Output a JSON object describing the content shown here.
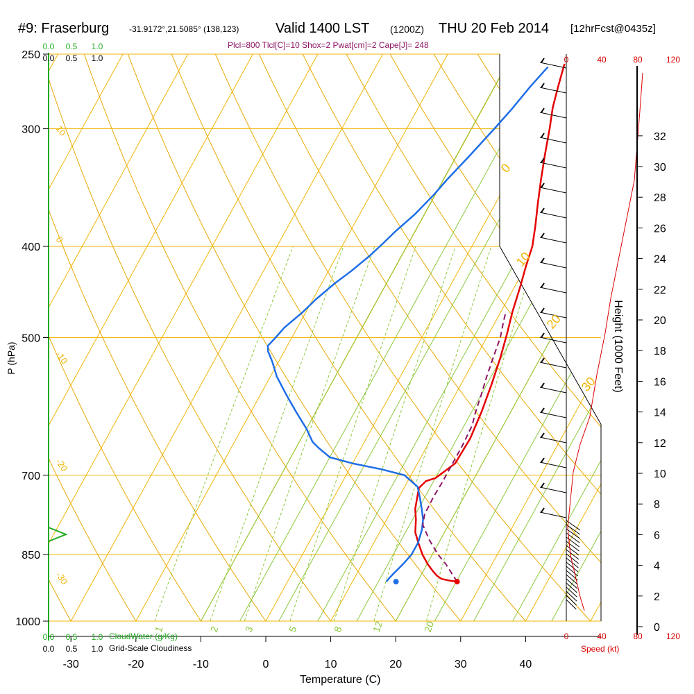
{
  "header": {
    "site": "#9: Fraserburg",
    "coords": "-31.9172°,21.5085° (138,123)",
    "valid_label": "Valid 1400 LST",
    "zulu": "(1200Z)",
    "date": "THU 20 Feb 2014",
    "forecast": "[12hrFcst@0435z]",
    "indices": "Plcl=800 Tlcl[C]=10 Shox=2 Pwat[cm]=2 Cape[J]= 248"
  },
  "colors": {
    "isobar": "#f0b400",
    "dry_adiabat": "#e8a800",
    "moist_adiabat": "#8cc83c",
    "mixing_ratio": "#8cc83c",
    "temperature": "#e60000",
    "dewpoint": "#1e6ee6",
    "parcel": "#8c1464",
    "cloud": "#22aa22",
    "speed": "#dd0000"
  },
  "chart_data": {
    "type": "line",
    "title": "Valid 1400 LST (1200Z) THU 20 Feb 2014",
    "xlabel": "Temperature (C)",
    "ylabel": "P (hPa)",
    "y2label": "Height (1000 Feet)",
    "pressure_ticks": [
      "250",
      "300",
      "400",
      "500",
      "700",
      "850",
      "1000"
    ],
    "temperature_ticks": [
      "-30",
      "-20",
      "-10",
      "0",
      "10",
      "20",
      "30",
      "40"
    ],
    "height_ticks": [
      "0",
      "2",
      "4",
      "6",
      "8",
      "10",
      "12",
      "14",
      "16",
      "18",
      "20",
      "22",
      "24",
      "26",
      "28",
      "30",
      "32"
    ],
    "speed_ticks": [
      "0",
      "40",
      "80",
      "120"
    ],
    "speed_label": "Speed (kt)",
    "cloud_scale_top": [
      "0.0",
      "0.5",
      "1.0"
    ],
    "cloud_scale_label": "CloudWater (g/Kg)",
    "cloudiness_label": "Grid-Scale Cloudiness",
    "isotherm_labels": [
      "10",
      "0",
      "-10",
      "-20",
      "-30"
    ],
    "dry_adiabat_labels": [
      "0",
      "10",
      "20",
      "30"
    ],
    "mixing_ratio_labels": [
      "1",
      "2",
      "3",
      "5",
      "8",
      "12",
      "20"
    ],
    "series": [
      {
        "values": [
          [
            26.1,
            908
          ],
          [
            25,
            906
          ],
          [
            23.5,
            902
          ],
          [
            22.5,
            895
          ],
          [
            21.5,
            885
          ],
          [
            20.1,
            870
          ],
          [
            18.5,
            850
          ],
          [
            17,
            828
          ],
          [
            15.5,
            805
          ],
          [
            14.5,
            780
          ],
          [
            13.5,
            760
          ],
          [
            12.8,
            738
          ],
          [
            12.3,
            722
          ],
          [
            12.8,
            710
          ],
          [
            14,
            705
          ],
          [
            15.8,
            680
          ],
          [
            16,
            640
          ],
          [
            15.5,
            600
          ],
          [
            14.7,
            560
          ],
          [
            13.8,
            525
          ],
          [
            12.8,
            495
          ],
          [
            11.8,
            470
          ],
          [
            10.8,
            440
          ],
          [
            10,
            420
          ],
          [
            9.3,
            400
          ],
          [
            8,
            380
          ],
          [
            6.5,
            360
          ],
          [
            5,
            340
          ],
          [
            3.5,
            320
          ],
          [
            2,
            300
          ],
          [
            0.7,
            285
          ],
          [
            -0.3,
            270
          ],
          [
            -1.2,
            256
          ]
        ]
      },
      {
        "values": [
          [
            15.2,
            908
          ],
          [
            15.5,
            895
          ],
          [
            16.3,
            870
          ],
          [
            16.8,
            850
          ],
          [
            16.8,
            825
          ],
          [
            16.3,
            800
          ],
          [
            15.6,
            780
          ],
          [
            14.5,
            760
          ],
          [
            13.3,
            740
          ],
          [
            12,
            720
          ],
          [
            9,
            700
          ],
          [
            5,
            690
          ],
          [
            0,
            680
          ],
          [
            -4,
            670
          ],
          [
            -6.5,
            655
          ],
          [
            -8,
            645
          ],
          [
            -10,
            625
          ],
          [
            -13,
            600
          ],
          [
            -16,
            575
          ],
          [
            -19,
            550
          ],
          [
            -21,
            530
          ],
          [
            -22.5,
            517
          ],
          [
            -23,
            510
          ],
          [
            -22.5,
            500
          ],
          [
            -22,
            488
          ],
          [
            -20.5,
            470
          ],
          [
            -19.5,
            455
          ],
          [
            -18,
            438
          ],
          [
            -16.5,
            425
          ],
          [
            -15,
            410
          ],
          [
            -14,
            398
          ],
          [
            -13,
            385
          ],
          [
            -11.5,
            370
          ],
          [
            -10.2,
            352
          ],
          [
            -9.5,
            340
          ],
          [
            -8,
            320
          ],
          [
            -6.5,
            300
          ],
          [
            -5.5,
            286
          ],
          [
            -4.5,
            270
          ],
          [
            -3.5,
            258
          ]
        ]
      },
      {
        "values": [
          [
            26.1,
            908
          ],
          [
            24.6,
            890
          ],
          [
            22.9,
            870
          ],
          [
            20.9,
            850
          ],
          [
            18.3,
            820
          ],
          [
            16,
            790
          ],
          [
            15.4,
            770
          ],
          [
            15.3,
            740
          ],
          [
            15.4,
            710
          ],
          [
            15.4,
            680
          ],
          [
            15.4,
            650
          ],
          [
            15.2,
            620
          ],
          [
            14.6,
            600
          ],
          [
            14,
            575
          ],
          [
            13.3,
            550
          ],
          [
            12.7,
            525
          ],
          [
            12.1,
            500
          ],
          [
            11.2,
            480
          ],
          [
            10.8,
            470
          ]
        ]
      }
    ],
    "surface_temperature": 26.1,
    "surface_dewpoint": 15.2,
    "surface_pressure": 908
  }
}
